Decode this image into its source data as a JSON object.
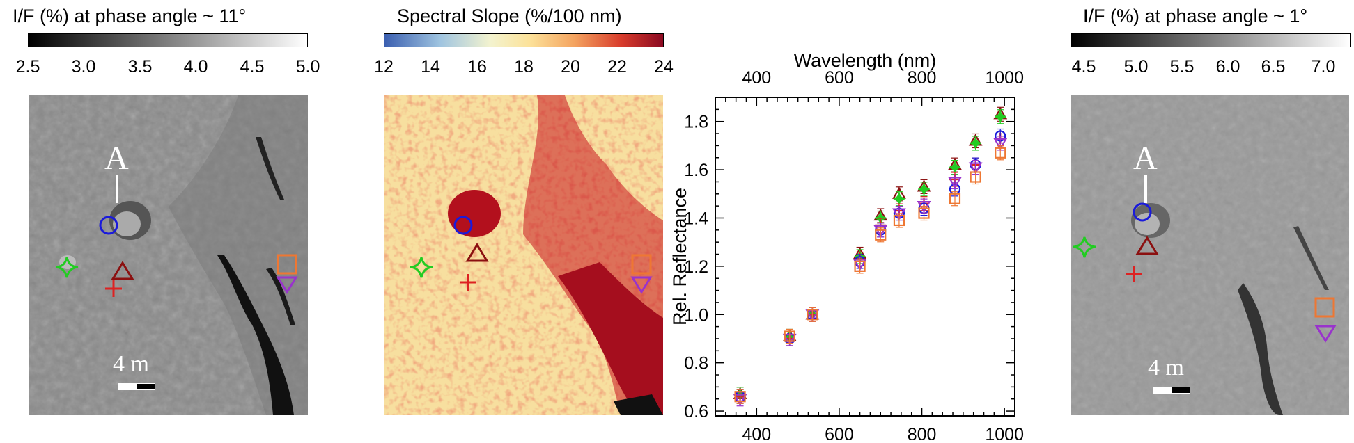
{
  "panel1": {
    "title": "I/F (%) at phase angle ~ 11°",
    "ticks": [
      "2.5",
      "3.0",
      "3.5",
      "4.0",
      "4.5",
      "5.0"
    ],
    "label_A": "A",
    "scale": "4 m"
  },
  "panel2": {
    "title": "Spectral Slope (%/100 nm)",
    "ticks": [
      "12",
      "14",
      "16",
      "18",
      "20",
      "22",
      "24"
    ]
  },
  "panel4": {
    "title": "I/F (%) at phase angle ~ 1°",
    "ticks": [
      "4.5",
      "5.0",
      "5.5",
      "6.0",
      "6.5",
      "7.0"
    ],
    "label_A": "A",
    "scale": "4 m"
  },
  "marker_colors": {
    "circle": "#1a1adb",
    "triangle_up": "#8b1010",
    "plus": "#dd2222",
    "star": "#22cc22",
    "square": "#ee7733",
    "triangle_down": "#9933cc"
  },
  "chart_data": {
    "type": "scatter",
    "xlabel_top": "Wavelength (nm)",
    "ylabel": "Rel. Reflectance",
    "xlim": [
      300,
      1025
    ],
    "ylim": [
      0.58,
      1.9
    ],
    "x_ticks": [
      400,
      600,
      800,
      1000
    ],
    "y_ticks": [
      0.6,
      0.8,
      1.0,
      1.2,
      1.4,
      1.6,
      1.8
    ],
    "x": [
      360,
      480,
      535,
      650,
      700,
      745,
      805,
      880,
      930,
      990
    ],
    "series": [
      {
        "marker": "triangle_up",
        "values": [
          0.67,
          0.91,
          1.0,
          1.25,
          1.41,
          1.5,
          1.53,
          1.62,
          1.72,
          1.83
        ]
      },
      {
        "marker": "star",
        "values": [
          0.67,
          0.91,
          1.0,
          1.24,
          1.4,
          1.48,
          1.52,
          1.61,
          1.71,
          1.82
        ]
      },
      {
        "marker": "plus",
        "values": [
          0.66,
          0.9,
          1.0,
          1.23,
          1.37,
          1.43,
          1.46,
          1.56,
          1.62,
          1.73
        ]
      },
      {
        "marker": "circle",
        "values": [
          0.66,
          0.9,
          1.0,
          1.22,
          1.35,
          1.42,
          1.44,
          1.52,
          1.62,
          1.74
        ]
      },
      {
        "marker": "triangle_down",
        "values": [
          0.65,
          0.9,
          1.0,
          1.21,
          1.35,
          1.42,
          1.45,
          1.55,
          1.61,
          1.71
        ]
      },
      {
        "marker": "square",
        "values": [
          0.66,
          0.91,
          1.0,
          1.2,
          1.33,
          1.39,
          1.42,
          1.48,
          1.57,
          1.67
        ]
      }
    ]
  }
}
